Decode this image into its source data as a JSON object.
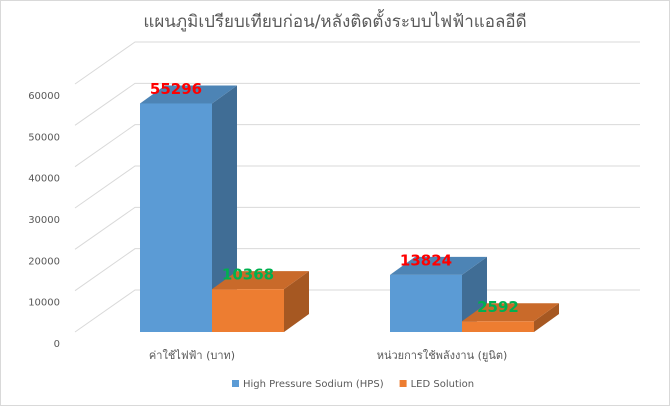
{
  "chart_data": {
    "type": "bar3d",
    "title": "แผนภูมิเปรียบเทียบก่อน/หลังติดตั้งระบบไฟฟ้าแอลอีดี",
    "categories": [
      "ค่าใช้ไฟฟ้า (บาท)",
      "หน่วยการใช้พลังงาน (ยูนิต)"
    ],
    "series": [
      {
        "name": "High Pressure Sodium (HPS)",
        "color": "#5b9bd5",
        "label_color": "#ff0000",
        "values": [
          55296,
          13824
        ]
      },
      {
        "name": "LED Solution",
        "color": "#ed7d31",
        "label_color": "#00b050",
        "values": [
          10368,
          2592
        ]
      }
    ],
    "ylim": [
      0,
      60000
    ],
    "yticks": [
      0,
      10000,
      20000,
      30000,
      40000,
      50000,
      60000
    ],
    "grid": true,
    "legend": "bottom"
  }
}
